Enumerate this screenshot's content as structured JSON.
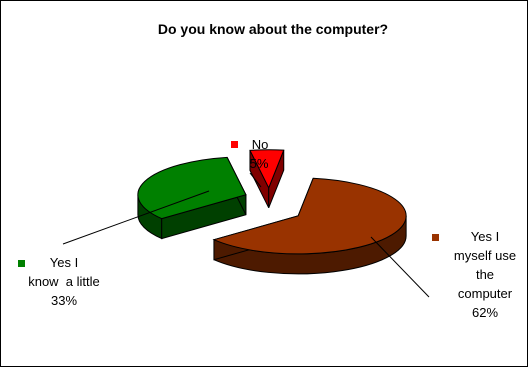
{
  "chart_data": {
    "type": "pie",
    "style": "3d-exploded",
    "title": "Do you know about the computer?",
    "slices": [
      {
        "name": "Yes I myself use the computer",
        "label_lines": [
          "Yes I",
          "myself use",
          "the",
          "computer"
        ],
        "percent_label": "62%",
        "value": 62,
        "color": "#993300",
        "side_color": "#4d1a00"
      },
      {
        "name": "Yes I know a little",
        "label_lines": [
          "Yes I",
          "know  a little"
        ],
        "percent_label": "33%",
        "value": 33,
        "color": "#008000",
        "side_color": "#004000"
      },
      {
        "name": "No",
        "label_lines": [
          "No"
        ],
        "percent_label": "5%",
        "value": 5,
        "color": "#ff0000",
        "side_color": "#800000"
      }
    ],
    "legend": "none",
    "data_labels": "category-name-and-percent"
  }
}
